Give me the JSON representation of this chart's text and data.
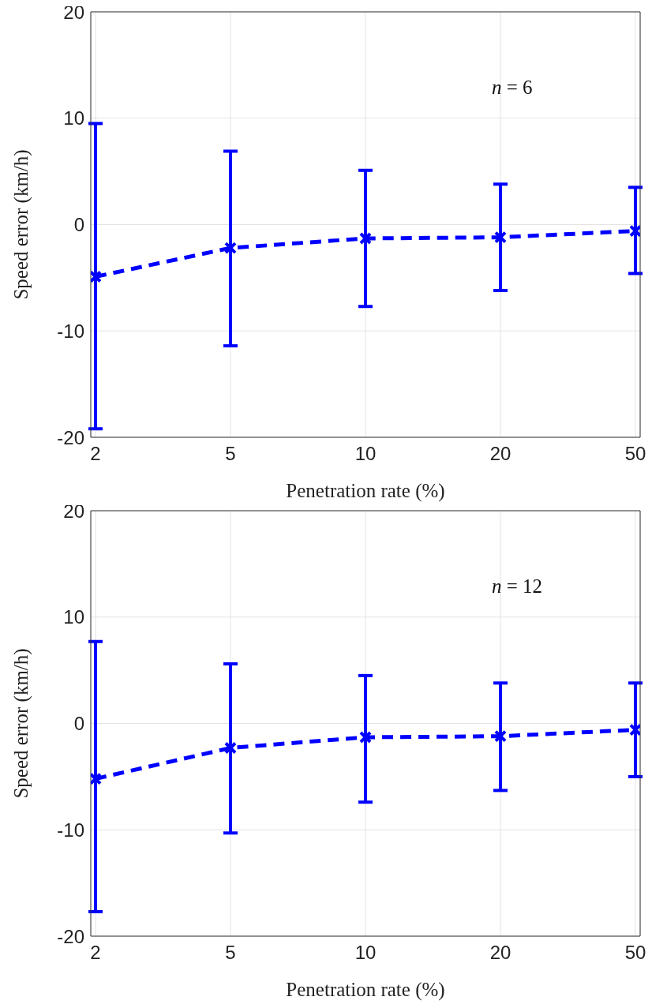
{
  "chart_data": [
    {
      "type": "line",
      "categories": [
        "2",
        "5",
        "10",
        "20",
        "50"
      ],
      "xlabel": "Penetration rate (%)",
      "ylabel": "Speed error (km/h)",
      "ylim": [
        -20,
        20
      ],
      "yticks": [
        -20,
        -10,
        0,
        10,
        20
      ],
      "grid": true,
      "marker": "cross",
      "line_style": "dashed",
      "annotations": [
        "n = 6"
      ],
      "series": [
        {
          "color": "#0000ff",
          "values": [
            -4.9,
            -2.2,
            -1.3,
            -1.2,
            -0.6
          ],
          "errors": [
            [
              -19.2,
              9.5
            ],
            [
              -11.4,
              6.9
            ],
            [
              -7.7,
              5.1
            ],
            [
              -6.2,
              3.8
            ],
            [
              -4.6,
              3.5
            ]
          ]
        }
      ]
    },
    {
      "type": "line",
      "categories": [
        "2",
        "5",
        "10",
        "20",
        "50"
      ],
      "xlabel": "Penetration rate (%)",
      "ylabel": "Speed error (km/h)",
      "ylim": [
        -20,
        20
      ],
      "yticks": [
        -20,
        -10,
        0,
        10,
        20
      ],
      "grid": true,
      "marker": "cross",
      "line_style": "dashed",
      "annotations": [
        "n = 12"
      ],
      "series": [
        {
          "color": "#0000ff",
          "values": [
            -5.2,
            -2.3,
            -1.3,
            -1.2,
            -0.6
          ],
          "errors": [
            [
              -17.7,
              7.7
            ],
            [
              -10.3,
              5.6
            ],
            [
              -7.4,
              4.5
            ],
            [
              -6.3,
              3.8
            ],
            [
              -5.0,
              3.8
            ]
          ]
        }
      ]
    }
  ]
}
